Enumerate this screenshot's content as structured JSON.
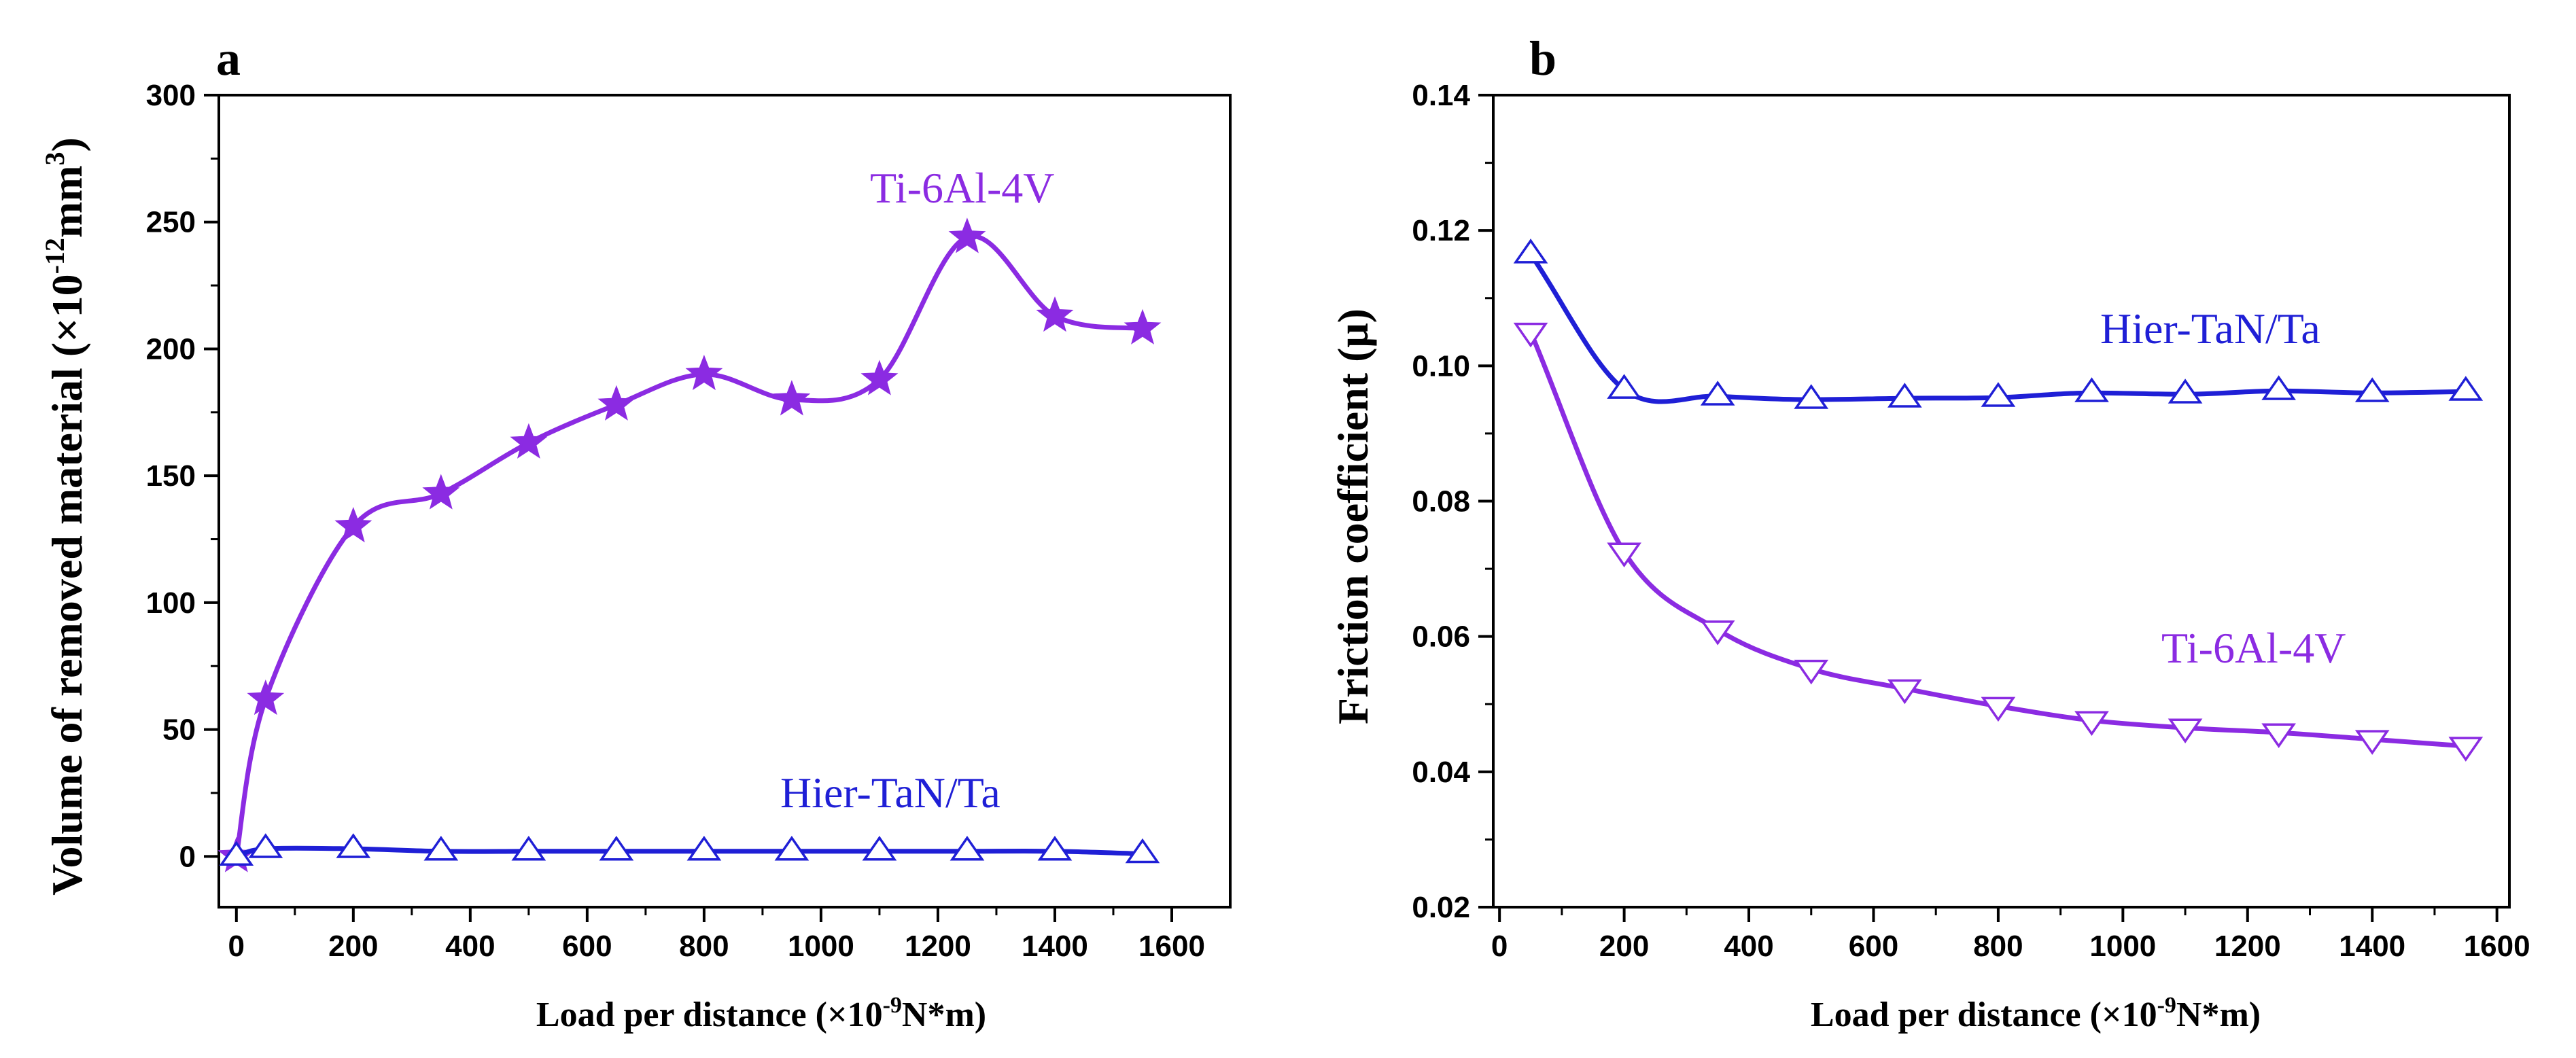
{
  "colors": {
    "ti": "#8B2BE2",
    "hier": "#1F1FD6",
    "axis": "#000000"
  },
  "chart_data": [
    {
      "panel": "a",
      "type": "line",
      "xlabel": {
        "main": "Load per distance (×10",
        "sup": "-9",
        "tail": "N*m)"
      },
      "ylabel": {
        "main": "Volume of removed material (×10",
        "sup1": "-12",
        "mid": "mm",
        "sup2": "3",
        "tail": ")"
      },
      "xlim": [
        -30,
        1700
      ],
      "ylim": [
        -20,
        300
      ],
      "xticks": [
        0,
        200,
        400,
        600,
        800,
        1000,
        1200,
        1400,
        1600
      ],
      "xtick_labels": [
        "0",
        "200",
        "400",
        "600",
        "800",
        "1000",
        "1200",
        "1400",
        "1600"
      ],
      "yticks": [
        0,
        50,
        100,
        150,
        200,
        250,
        300
      ],
      "ytick_labels": [
        "0",
        "50",
        "100",
        "150",
        "200",
        "250",
        "300"
      ],
      "series": [
        {
          "name": "Ti-6Al-4V",
          "label": "Ti-6Al-4V",
          "marker": "star",
          "x": [
            0,
            50,
            200,
            350,
            500,
            650,
            800,
            950,
            1100,
            1250,
            1400,
            1550
          ],
          "y": [
            0,
            62,
            130,
            143,
            163,
            178,
            190,
            180,
            188,
            244,
            213,
            208
          ]
        },
        {
          "name": "Hier-TaN/Ta",
          "label": "Hier-TaN/Ta",
          "marker": "triangle-up",
          "x": [
            0,
            50,
            200,
            350,
            500,
            650,
            800,
            950,
            1100,
            1250,
            1400,
            1550
          ],
          "y": [
            0,
            3,
            3,
            2,
            2,
            2,
            2,
            2,
            2,
            2,
            2,
            1
          ]
        }
      ]
    },
    {
      "panel": "b",
      "type": "line",
      "xlabel": {
        "main": "Load per distance (×10",
        "sup": "-9",
        "tail": "N*m)"
      },
      "ylabel": {
        "main": "Friction coefficient (μ)"
      },
      "xlim": [
        -10,
        1620
      ],
      "ylim": [
        0.02,
        0.14
      ],
      "xticks": [
        0,
        200,
        400,
        600,
        800,
        1000,
        1200,
        1400,
        1600
      ],
      "xtick_labels": [
        "0",
        "200",
        "400",
        "600",
        "800",
        "1000",
        "1200",
        "1400",
        "1600"
      ],
      "yticks": [
        0.02,
        0.04,
        0.06,
        0.08,
        0.1,
        0.12,
        0.14
      ],
      "ytick_labels": [
        "0.02",
        "0.04",
        "0.06",
        "0.08",
        "0.10",
        "0.12",
        "0.14"
      ],
      "series": [
        {
          "name": "Hier-TaN/Ta",
          "label": "Hier-TaN/Ta",
          "marker": "triangle-up",
          "x": [
            50,
            200,
            350,
            500,
            650,
            800,
            950,
            1100,
            1250,
            1400,
            1550
          ],
          "y": [
            0.1165,
            0.0965,
            0.0955,
            0.095,
            0.0952,
            0.0953,
            0.096,
            0.0958,
            0.0963,
            0.096,
            0.0962
          ]
        },
        {
          "name": "Ti-6Al-4V",
          "label": "Ti-6Al-4V",
          "marker": "triangle-down",
          "x": [
            50,
            200,
            350,
            500,
            650,
            800,
            950,
            1100,
            1250,
            1400,
            1550
          ],
          "y": [
            0.105,
            0.0725,
            0.061,
            0.0552,
            0.0523,
            0.0497,
            0.0476,
            0.0465,
            0.0458,
            0.0448,
            0.0438
          ]
        }
      ]
    }
  ]
}
